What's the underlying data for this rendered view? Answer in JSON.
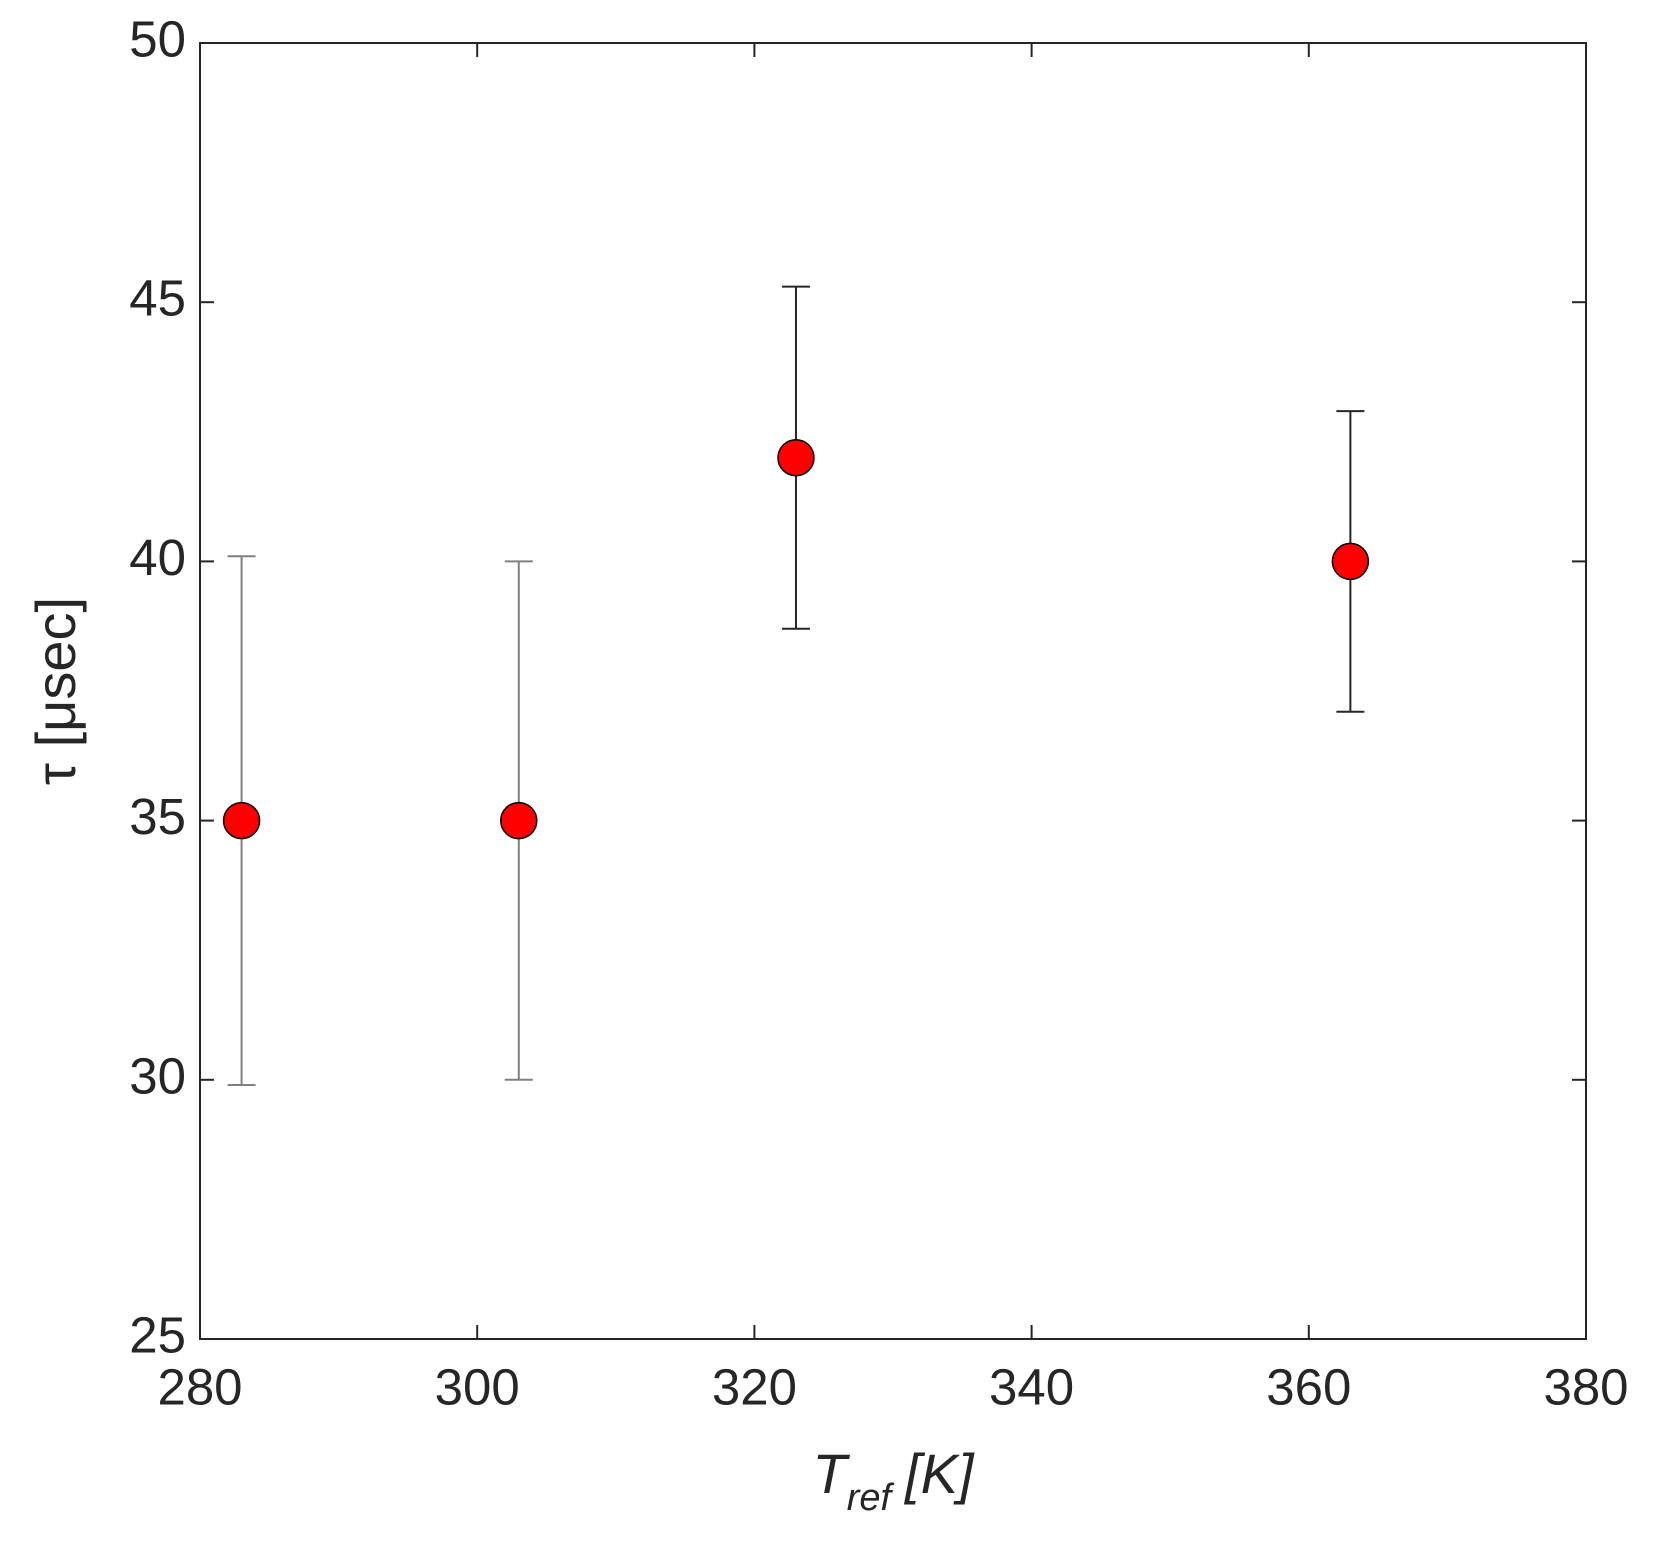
{
  "chart_data": {
    "type": "scatter",
    "xlabel": {
      "main": "T",
      "sub": "ref",
      "unit": "[K]"
    },
    "ylabel": "τ [μsec]",
    "x": [
      283,
      303,
      323,
      363
    ],
    "series": [
      {
        "color": "#ff0000",
        "values": [
          35,
          35,
          42,
          40
        ],
        "errors": [
          5.1,
          5,
          3.3,
          2.9
        ],
        "error_colors": [
          "#808080",
          "#808080",
          "#262626",
          "#262626"
        ]
      }
    ],
    "xlim": [
      280,
      380
    ],
    "xticks": [
      280,
      300,
      320,
      340,
      360,
      380
    ],
    "ylim": [
      25,
      50
    ],
    "yticks": [
      25,
      30,
      35,
      40,
      45,
      50
    ],
    "grid": false
  }
}
